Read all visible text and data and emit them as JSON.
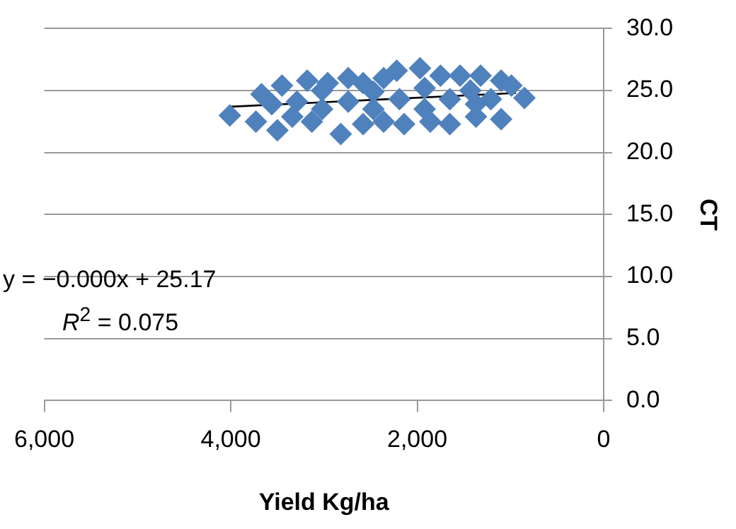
{
  "chart_data": {
    "type": "scatter",
    "xlabel": "Yield Kg/ha",
    "ylabel": "CT",
    "xlim": [
      6000,
      0
    ],
    "xticks": [
      {
        "value": 6000,
        "label": "6,000"
      },
      {
        "value": 4000,
        "label": "4,000"
      },
      {
        "value": 2000,
        "label": "2,000"
      },
      {
        "value": 0,
        "label": "0"
      }
    ],
    "ylim": [
      0,
      30
    ],
    "yticks": [
      {
        "value": 0,
        "label": "0.0"
      },
      {
        "value": 5,
        "label": "5.0"
      },
      {
        "value": 10,
        "label": "10.0"
      },
      {
        "value": 15,
        "label": "15.0"
      },
      {
        "value": 20,
        "label": "20.0"
      },
      {
        "value": 25,
        "label": "25.0"
      },
      {
        "value": 30,
        "label": "30.0"
      }
    ],
    "grid": "y",
    "legend": false,
    "marker": "diamond",
    "series": [
      {
        "color": "#4f81bd",
        "x": [
          4010,
          3730,
          3500,
          3670,
          3450,
          3180,
          2960,
          2740,
          2580,
          2360,
          2220,
          1970,
          1750,
          1540,
          1320,
          1100,
          990,
          850,
          1100,
          1370,
          1650,
          1860,
          2140,
          2360,
          2580,
          2820,
          3130,
          3340,
          3290,
          2740,
          2190,
          1650,
          1210,
          3020,
          2470,
          1920,
          1370,
          3560,
          3020,
          2470,
          1920,
          1430
        ],
        "values": [
          23.0,
          22.5,
          21.8,
          24.7,
          25.4,
          25.8,
          25.6,
          26.0,
          25.6,
          26.0,
          26.6,
          26.8,
          26.2,
          26.2,
          26.2,
          25.8,
          25.4,
          24.4,
          22.7,
          22.9,
          22.3,
          22.5,
          22.3,
          22.5,
          22.3,
          21.5,
          22.5,
          22.9,
          24.1,
          24.1,
          24.3,
          24.3,
          24.3,
          23.5,
          23.5,
          23.5,
          23.9,
          23.9,
          25.0,
          24.9,
          25.2,
          25.0
        ]
      },
      {
        "type": "line",
        "color": "#000000",
        "marker": "none",
        "x": [
          4000,
          940
        ],
        "values": [
          23.7,
          24.8
        ]
      }
    ],
    "annotations": [
      "y = −0.000x + 25.17",
      "R$^{2}$ = 0.075"
    ]
  }
}
